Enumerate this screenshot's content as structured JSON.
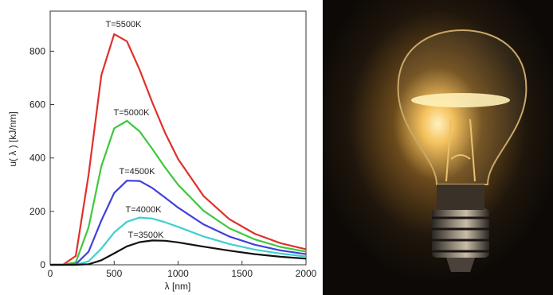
{
  "chart_data": {
    "type": "line",
    "xlabel": "λ [nm]",
    "ylabel": "u( λ ) [kJ/nm]",
    "x": [
      0,
      100,
      200,
      300,
      400,
      500,
      600,
      700,
      800,
      900,
      1000,
      1200,
      1400,
      1600,
      1800,
      2000
    ],
    "series": [
      {
        "name": "T=5500K",
        "color": "#e0302a",
        "values": [
          0,
          0,
          33,
          338,
          710,
          864,
          837,
          730,
          606,
          492,
          396,
          257,
          171,
          116,
          81,
          58
        ]
      },
      {
        "name": "T=5000K",
        "color": "#3ec83e",
        "values": [
          0,
          0,
          9,
          141,
          369,
          511,
          539,
          499,
          433,
          363,
          300,
          202,
          137,
          95,
          67,
          49
        ]
      },
      {
        "name": "T=4500K",
        "color": "#4040dc",
        "values": [
          0,
          0,
          2,
          49,
          166,
          269,
          315,
          314,
          287,
          251,
          214,
          151,
          106,
          75,
          54,
          40
        ]
      },
      {
        "name": "T=4000K",
        "color": "#3fcfd0",
        "values": [
          0,
          0,
          0,
          13,
          61,
          121,
          161,
          177,
          173,
          159,
          142,
          106,
          78,
          57,
          42,
          31
        ]
      },
      {
        "name": "T=3500K",
        "color": "#111111",
        "values": [
          0,
          0,
          0,
          2,
          17,
          43,
          69,
          85,
          91,
          90,
          84,
          68,
          53,
          40,
          30,
          23
        ]
      }
    ],
    "xlim": [
      0,
      2000
    ],
    "xticks": [
      0,
      500,
      1000,
      1500,
      2000
    ],
    "ylim": [
      0,
      950
    ],
    "yticks": [
      0,
      200,
      400,
      600,
      800
    ]
  }
}
